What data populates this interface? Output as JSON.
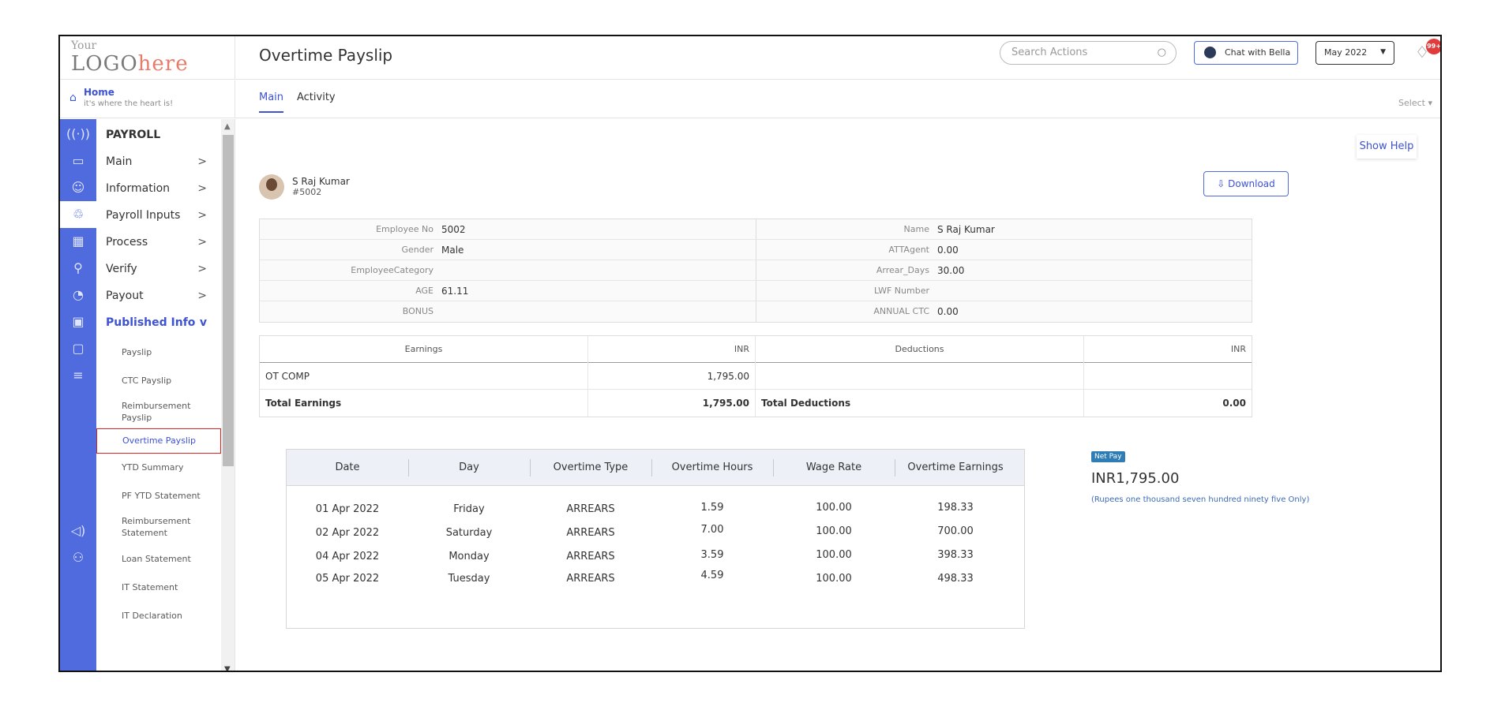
{
  "brand": {
    "logo_top": "Your",
    "logo_main": "LOGO",
    "logo_here": "here"
  },
  "home": {
    "title": "Home",
    "subtitle": "it's where the heart is!"
  },
  "header": {
    "title": "Overtime Payslip",
    "search_placeholder": "Search Actions",
    "chat_label": "Chat with Bella",
    "month": "May 2022",
    "notification_count": "99+"
  },
  "tabs": [
    {
      "label": "Main"
    },
    {
      "label": "Activity"
    }
  ],
  "select_label": "Select",
  "show_help": "Show Help",
  "sidebar": {
    "section": "PAYROLL",
    "items": [
      {
        "label": "Main",
        "chevron": ">"
      },
      {
        "label": "Information",
        "chevron": ">"
      },
      {
        "label": "Payroll Inputs",
        "chevron": ">"
      },
      {
        "label": "Process",
        "chevron": ">"
      },
      {
        "label": "Verify",
        "chevron": ">"
      },
      {
        "label": "Payout",
        "chevron": ">"
      },
      {
        "label": "Published Info",
        "chevron": "v"
      }
    ],
    "subitems": [
      "Payslip",
      "CTC Payslip",
      "Reimbursement Payslip",
      "Overtime Payslip",
      "YTD Summary",
      "PF YTD Statement",
      "Reimbursement Statement",
      "Loan Statement",
      "IT Statement",
      "IT Declaration"
    ]
  },
  "employee": {
    "name": "S Raj Kumar",
    "id": "#5002",
    "download": "Download"
  },
  "info": {
    "left": [
      {
        "label": "Employee No",
        "value": "5002"
      },
      {
        "label": "Gender",
        "value": "Male"
      },
      {
        "label": "EmployeeCategory",
        "value": ""
      },
      {
        "label": "AGE",
        "value": "61.11"
      },
      {
        "label": "BONUS",
        "value": ""
      }
    ],
    "right": [
      {
        "label": "Name",
        "value": "S Raj Kumar"
      },
      {
        "label": "ATTAgent",
        "value": "0.00"
      },
      {
        "label": "Arrear_Days",
        "value": "30.00"
      },
      {
        "label": "LWF Number",
        "value": ""
      },
      {
        "label": "ANNUAL CTC",
        "value": "0.00"
      }
    ]
  },
  "earnings": {
    "headers": [
      "Earnings",
      "INR",
      "Deductions",
      "INR"
    ],
    "rows": [
      [
        "OT COMP",
        "1,795.00",
        "",
        ""
      ]
    ],
    "total": [
      "Total Earnings",
      "1,795.00",
      "Total Deductions",
      "0.00"
    ]
  },
  "overtime": {
    "headers": [
      "Date",
      "Day",
      "Overtime Type",
      "Overtime Hours",
      "Wage Rate",
      "Overtime Earnings"
    ],
    "rows": [
      [
        "01 Apr 2022",
        "Friday",
        "ARREARS",
        "1.59",
        "100.00",
        "198.33"
      ],
      [
        "02 Apr 2022",
        "Saturday",
        "ARREARS",
        "7.00",
        "100.00",
        "700.00"
      ],
      [
        "04 Apr 2022",
        "Monday",
        "ARREARS",
        "3.59",
        "100.00",
        "398.33"
      ],
      [
        "05 Apr 2022",
        "Tuesday",
        "ARREARS",
        "4.59",
        "100.00",
        "498.33"
      ]
    ]
  },
  "netpay": {
    "badge": "Net Pay",
    "amount": "INR1,795.00",
    "words": "(Rupees one thousand seven hundred ninety five Only)"
  }
}
